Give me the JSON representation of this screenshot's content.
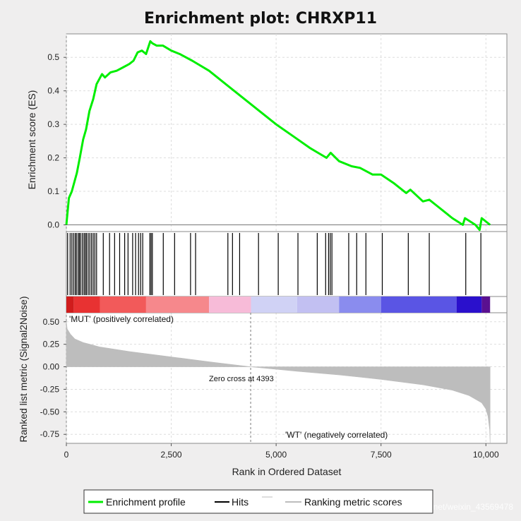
{
  "chart_data": {
    "type": "line",
    "title": "Enrichment plot: CHRXP11",
    "xlabel": "Rank in Ordered Dataset",
    "x_range": [
      0,
      10500
    ],
    "x_ticks": [
      0,
      2500,
      5000,
      7500,
      10000
    ],
    "x_tick_labels": [
      "0",
      "2,500",
      "5,000",
      "7,500",
      "10,000"
    ],
    "grid": true,
    "panels": {
      "es": {
        "ylabel": "Enrichment score (ES)",
        "ylim": [
          -0.02,
          0.57
        ],
        "y_ticks": [
          0.0,
          0.1,
          0.2,
          0.3,
          0.4,
          0.5
        ],
        "y_tick_labels": [
          "0.0",
          "0.1",
          "0.2",
          "0.3",
          "0.4",
          "0.5"
        ],
        "series": [
          {
            "name": "Enrichment profile",
            "color": "#00ee00",
            "x": [
              0,
              60,
              130,
              250,
              320,
              400,
              470,
              550,
              640,
              720,
              850,
              920,
              1050,
              1200,
              1350,
              1500,
              1600,
              1700,
              1800,
              1900,
              2000,
              2050,
              2150,
              2300,
              2500,
              2700,
              3000,
              3400,
              3800,
              4200,
              4600,
              5000,
              5400,
              5800,
              6000,
              6200,
              6300,
              6500,
              6800,
              7000,
              7300,
              7500,
              7800,
              8100,
              8200,
              8500,
              8650,
              8800,
              9200,
              9450,
              9500,
              9750,
              9850,
              9900,
              10100
            ],
            "y": [
              0.0,
              0.08,
              0.1,
              0.155,
              0.2,
              0.255,
              0.285,
              0.34,
              0.375,
              0.42,
              0.45,
              0.44,
              0.455,
              0.46,
              0.47,
              0.48,
              0.49,
              0.515,
              0.52,
              0.51,
              0.548,
              0.542,
              0.535,
              0.535,
              0.52,
              0.51,
              0.49,
              0.46,
              0.42,
              0.38,
              0.34,
              0.3,
              0.265,
              0.23,
              0.215,
              0.2,
              0.215,
              0.19,
              0.175,
              0.17,
              0.15,
              0.15,
              0.125,
              0.095,
              0.105,
              0.07,
              0.075,
              0.06,
              0.02,
              0.0,
              0.02,
              0.0,
              -0.015,
              0.02,
              0.0
            ]
          }
        ]
      },
      "hits": {
        "label": "Hits",
        "color": "#000000",
        "positions": [
          30,
          90,
          130,
          170,
          210,
          240,
          280,
          310,
          340,
          380,
          420,
          450,
          480,
          520,
          560,
          600,
          640,
          680,
          720,
          880,
          1030,
          1150,
          1270,
          1390,
          1470,
          1580,
          1650,
          1720,
          1770,
          1820,
          1990,
          2020,
          2050,
          2310,
          2580,
          2960,
          3080,
          3850,
          3960,
          4130,
          4580,
          5050,
          5520,
          5980,
          6180,
          6250,
          6290,
          6330,
          6730,
          6920,
          7140,
          7530,
          8150,
          8650,
          9520,
          9880
        ]
      },
      "ranking": {
        "ylabel": "Ranked list metric (Signal2Noise)",
        "ylim": [
          -0.85,
          0.6
        ],
        "y_ticks": [
          0.5,
          0.25,
          0.0,
          -0.25,
          -0.5,
          -0.75
        ],
        "y_tick_labels": [
          "0.50",
          "0.25",
          "0.00",
          "-0.25",
          "-0.50",
          "-0.75"
        ],
        "series": [
          {
            "name": "Ranking metric scores",
            "color": "#bdbdbd",
            "x": [
              0,
              20,
              100,
              200,
              400,
              800,
              1500,
              2500,
              3500,
              4393,
              5500,
              6500,
              7500,
              8500,
              9200,
              9600,
              9900,
              10000,
              10050,
              10090,
              10100
            ],
            "y": [
              0.5,
              0.42,
              0.36,
              0.31,
              0.27,
              0.22,
              0.17,
              0.11,
              0.05,
              0.0,
              -0.05,
              -0.09,
              -0.14,
              -0.2,
              -0.26,
              -0.32,
              -0.4,
              -0.47,
              -0.55,
              -0.7,
              -0.85
            ]
          }
        ],
        "zero_cross": 4393,
        "zero_cross_label": "Zero cross at 4393",
        "positive_label": "'MUT' (positively correlated)",
        "negative_label": "'WT' (negatively correlated)",
        "positive_color": "#ee2222",
        "negative_color": "#2222dd"
      }
    },
    "heat_bar": {
      "segments": [
        {
          "x0": 0,
          "x1": 180,
          "color": "#d01c1c"
        },
        {
          "x0": 180,
          "x1": 800,
          "color": "#e83232"
        },
        {
          "x0": 800,
          "x1": 1900,
          "color": "#f25a5a"
        },
        {
          "x0": 1900,
          "x1": 3400,
          "color": "#f6888c"
        },
        {
          "x0": 3400,
          "x1": 4400,
          "color": "#f7bbd8"
        },
        {
          "x0": 4400,
          "x1": 5500,
          "color": "#d0d2f5"
        },
        {
          "x0": 5500,
          "x1": 6500,
          "color": "#c2c0f2"
        },
        {
          "x0": 6500,
          "x1": 7500,
          "color": "#8a8cee"
        },
        {
          "x0": 7500,
          "x1": 9300,
          "color": "#5a55e4"
        },
        {
          "x0": 9300,
          "x1": 9900,
          "color": "#2a10cc"
        },
        {
          "x0": 9900,
          "x1": 10100,
          "color": "#5a1090"
        }
      ]
    },
    "legend": {
      "items": [
        {
          "label": "Enrichment profile",
          "color": "#00ee00"
        },
        {
          "label": "Hits",
          "color": "#000000"
        },
        {
          "label": "Ranking metric scores",
          "color": "#bdbdbd"
        }
      ]
    }
  },
  "watermark": "https://blog.csdn.net/weixin_43569478"
}
